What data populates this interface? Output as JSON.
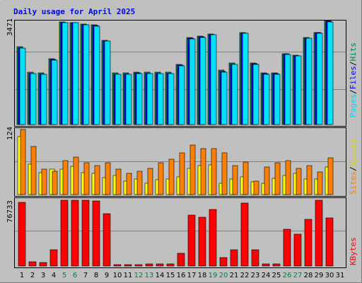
{
  "title": "Daily usage for April 2025",
  "colors": {
    "background": "#c0c0c0",
    "plot_bg": "#c0c0c0",
    "title": "#0000ff",
    "hits": "#00805c",
    "files": "#0000ff",
    "pages": "#00e0ff",
    "visits": "#ffff00",
    "sites": "#ff8000",
    "kbytes": "#ff0000",
    "weekend_label": "#008040",
    "weekday_label": "#000000"
  },
  "panel1": {
    "max_label": "3471",
    "legend": [
      "Pages",
      "/",
      "Files",
      "/",
      "Hits"
    ]
  },
  "panel2": {
    "max_label": "124",
    "legend": [
      "Sites",
      "/",
      "Visits"
    ]
  },
  "panel3": {
    "max_label": "76733",
    "legend": [
      "KBytes"
    ]
  },
  "chart_data": {
    "type": "bar",
    "title": "Daily usage for April 2025",
    "categories": [
      "1",
      "2",
      "3",
      "4",
      "5",
      "6",
      "7",
      "8",
      "9",
      "10",
      "11",
      "12",
      "13",
      "14",
      "15",
      "16",
      "17",
      "18",
      "19",
      "20",
      "21",
      "22",
      "23",
      "24",
      "25",
      "26",
      "27",
      "28",
      "29",
      "30",
      "31"
    ],
    "weekend_days": [
      "5",
      "6",
      "12",
      "13",
      "19",
      "20",
      "26",
      "27"
    ],
    "hits_files_pages": {
      "ylim": [
        0,
        3471
      ],
      "series": [
        {
          "name": "Hits",
          "values": [
            2600,
            1750,
            1720,
            2200,
            3420,
            3410,
            3350,
            3320,
            2800,
            1720,
            1720,
            1750,
            1740,
            1740,
            1740,
            2000,
            2900,
            2940,
            3020,
            1820,
            2050,
            3060,
            2060,
            1720,
            1720,
            2370,
            2320,
            2910,
            3080,
            3470,
            0
          ]
        },
        {
          "name": "Files",
          "values": [
            2550,
            1700,
            1680,
            2170,
            3400,
            3400,
            3330,
            3300,
            2790,
            1680,
            1680,
            1720,
            1710,
            1710,
            1700,
            1980,
            2880,
            2920,
            2990,
            1760,
            2010,
            3040,
            2020,
            1690,
            1690,
            2360,
            2300,
            2890,
            3060,
            3440,
            0
          ]
        },
        {
          "name": "Pages",
          "values": [
            2540,
            1690,
            1670,
            2160,
            3400,
            3400,
            3320,
            3290,
            2780,
            1680,
            1680,
            1710,
            1700,
            1700,
            1690,
            1960,
            2860,
            2910,
            2990,
            1750,
            2000,
            3040,
            2010,
            1680,
            1680,
            2340,
            2290,
            2880,
            3050,
            3430,
            0
          ]
        }
      ]
    },
    "visits_sites": {
      "ylim": [
        0,
        124
      ],
      "series": [
        {
          "name": "Visits",
          "values": [
            110,
            58,
            42,
            48,
            48,
            54,
            42,
            40,
            32,
            36,
            25,
            30,
            22,
            28,
            30,
            34,
            50,
            55,
            57,
            22,
            30,
            34,
            24,
            22,
            31,
            36,
            40,
            30,
            30,
            52,
            0
          ]
        },
        {
          "name": "Sites",
          "values": [
            124,
            92,
            48,
            45,
            65,
            72,
            60,
            55,
            60,
            48,
            40,
            45,
            50,
            60,
            68,
            80,
            94,
            88,
            88,
            80,
            55,
            62,
            25,
            52,
            60,
            65,
            50,
            55,
            43,
            70,
            0
          ]
        }
      ]
    },
    "kbytes": {
      "ylim": [
        0,
        76733
      ],
      "series": [
        {
          "name": "KBytes",
          "values": [
            73600,
            4800,
            4200,
            19000,
            76000,
            76200,
            76100,
            75400,
            60400,
            1300,
            1300,
            1600,
            2100,
            2100,
            2100,
            14900,
            58500,
            56400,
            65300,
            9400,
            18500,
            72900,
            19100,
            2100,
            2100,
            42200,
            37000,
            54100,
            76300,
            55800,
            0
          ]
        }
      ]
    }
  }
}
